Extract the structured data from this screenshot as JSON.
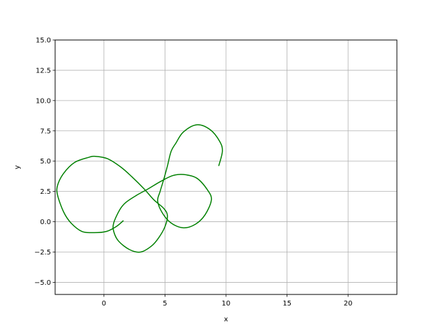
{
  "chart_data": {
    "type": "line",
    "title": "",
    "xlabel": "x",
    "ylabel": "y",
    "xlim": [
      -4,
      24
    ],
    "ylim": [
      -6,
      15
    ],
    "xticks": [
      0,
      5,
      10,
      15,
      20
    ],
    "xtick_labels": [
      "0",
      "5",
      "10",
      "15",
      "20"
    ],
    "yticks": [
      -5.0,
      -2.5,
      0.0,
      2.5,
      5.0,
      7.5,
      10.0,
      12.5,
      15.0
    ],
    "ytick_labels": [
      "−5.0",
      "−2.5",
      "0.0",
      "2.5",
      "5.0",
      "7.5",
      "10.0",
      "12.5",
      "15.0"
    ],
    "grid": true,
    "line_color": "#008000",
    "series": [
      {
        "x": [
          1.6,
          1.0,
          0.2,
          -0.8,
          -1.8,
          -2.7,
          -3.3,
          -3.8,
          -3.8,
          -3.3,
          -2.4,
          -1.3,
          -0.7,
          0.3,
          1.4,
          2.3,
          3.3,
          4.1,
          4.9,
          5.2,
          5.0,
          4.5,
          3.9,
          3.0,
          2.1,
          1.2,
          0.8,
          0.8,
          1.3,
          1.8,
          2.7,
          3.6,
          4.6,
          5.6,
          6.5,
          7.6,
          8.5,
          8.8,
          8.3,
          7.5,
          6.5,
          5.5,
          4.8,
          4.4,
          4.6,
          4.9,
          5.2,
          5.5,
          5.9,
          6.5,
          7.6,
          8.7,
          9.5,
          9.7,
          9.4
        ],
        "y": [
          0.1,
          -0.4,
          -0.8,
          -0.9,
          -0.8,
          -0.1,
          0.8,
          2.2,
          3.0,
          4.0,
          4.9,
          5.3,
          5.4,
          5.2,
          4.5,
          3.7,
          2.7,
          1.8,
          1.1,
          0.5,
          -0.4,
          -1.3,
          -2.0,
          -2.5,
          -2.3,
          -1.6,
          -0.8,
          -0.1,
          1.0,
          1.6,
          2.2,
          2.7,
          3.3,
          3.8,
          3.9,
          3.6,
          2.6,
          1.8,
          0.6,
          -0.2,
          -0.5,
          -0.1,
          0.7,
          1.7,
          2.5,
          3.5,
          4.6,
          5.8,
          6.5,
          7.4,
          8.0,
          7.6,
          6.6,
          5.8,
          4.6
        ]
      }
    ]
  }
}
